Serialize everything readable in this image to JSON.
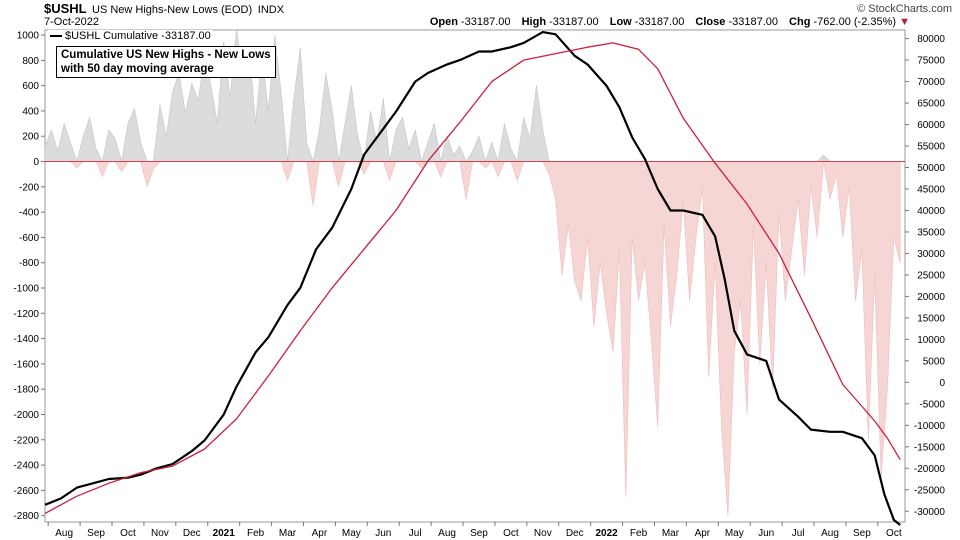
{
  "header": {
    "symbol": "$USHL",
    "description": "US New Highs-New Lows (EOD)",
    "exchange": "INDX",
    "date": "7-Oct-2022",
    "brand": "© StockCharts.com",
    "open_label": "Open",
    "open": "-33187.00",
    "high_label": "High",
    "high": "-33187.00",
    "low_label": "Low",
    "low": "-33187.00",
    "close_label": "Close",
    "close": "-33187.00",
    "chg_label": "Chg",
    "chg": "-762.00 (-2.35%)",
    "chg_arrow": "▼"
  },
  "legend": {
    "label": "$USHL Cumulative -33187.00"
  },
  "annotation": {
    "line1": "Cumulative US New Highs - New Lows",
    "line2": "with 50 day moving average"
  },
  "chart_data": {
    "type": "line",
    "left_axis": {
      "ticks": [
        1000,
        800,
        600,
        400,
        200,
        0,
        -200,
        -400,
        -600,
        -800,
        -1000,
        -1200,
        -1400,
        -1600,
        -1800,
        -2000,
        -2200,
        -2400,
        -2600,
        -2800
      ],
      "range": [
        -2850,
        1040
      ]
    },
    "right_axis": {
      "ticks": [
        80000,
        75000,
        70000,
        65000,
        60000,
        55000,
        50000,
        45000,
        40000,
        35000,
        30000,
        25000,
        20000,
        15000,
        10000,
        5000,
        0,
        -5000,
        -10000,
        -15000,
        -20000,
        -25000,
        -30000
      ],
      "range": [
        -32500,
        82000
      ]
    },
    "x_labels": [
      {
        "t": 0.6,
        "label": "Aug"
      },
      {
        "t": 1.6,
        "label": "Sep"
      },
      {
        "t": 2.6,
        "label": "Oct"
      },
      {
        "t": 3.6,
        "label": "Nov"
      },
      {
        "t": 4.6,
        "label": "Dec"
      },
      {
        "t": 5.6,
        "label": "2021",
        "bold": true
      },
      {
        "t": 6.6,
        "label": "Feb"
      },
      {
        "t": 7.6,
        "label": "Mar"
      },
      {
        "t": 8.6,
        "label": "Apr"
      },
      {
        "t": 9.6,
        "label": "May"
      },
      {
        "t": 10.6,
        "label": "Jun"
      },
      {
        "t": 11.6,
        "label": "Jul"
      },
      {
        "t": 12.6,
        "label": "Aug"
      },
      {
        "t": 13.6,
        "label": "Sep"
      },
      {
        "t": 14.6,
        "label": "Oct"
      },
      {
        "t": 15.6,
        "label": "Nov"
      },
      {
        "t": 16.6,
        "label": "Dec"
      },
      {
        "t": 17.6,
        "label": "2022",
        "bold": true
      },
      {
        "t": 18.6,
        "label": "Feb"
      },
      {
        "t": 19.6,
        "label": "Mar"
      },
      {
        "t": 20.6,
        "label": "Apr"
      },
      {
        "t": 21.6,
        "label": "May"
      },
      {
        "t": 22.6,
        "label": "Jun"
      },
      {
        "t": 23.6,
        "label": "Jul"
      },
      {
        "t": 24.6,
        "label": "Aug"
      },
      {
        "t": 25.6,
        "label": "Sep"
      },
      {
        "t": 26.6,
        "label": "Oct"
      }
    ],
    "series": [
      {
        "name": "$USHL Cumulative",
        "axis": "right",
        "color": "#000000",
        "points": [
          [
            0,
            -28500
          ],
          [
            0.5,
            -27000
          ],
          [
            1,
            -24500
          ],
          [
            1.5,
            -23500
          ],
          [
            2,
            -22500
          ],
          [
            2.6,
            -22200
          ],
          [
            3,
            -21500
          ],
          [
            3.5,
            -20000
          ],
          [
            4,
            -19000
          ],
          [
            4.6,
            -16000
          ],
          [
            5,
            -13500
          ],
          [
            5.6,
            -7500
          ],
          [
            6,
            -1000
          ],
          [
            6.6,
            7000
          ],
          [
            7,
            10500
          ],
          [
            7.6,
            18000
          ],
          [
            8,
            22000
          ],
          [
            8.5,
            31000
          ],
          [
            9,
            36000
          ],
          [
            9.6,
            45000
          ],
          [
            10,
            53000
          ],
          [
            10.6,
            59000
          ],
          [
            11,
            63000
          ],
          [
            11.6,
            70000
          ],
          [
            12,
            72000
          ],
          [
            12.6,
            74000
          ],
          [
            13,
            75000
          ],
          [
            13.6,
            77000
          ],
          [
            14,
            77000
          ],
          [
            14.6,
            78000
          ],
          [
            15,
            79000
          ],
          [
            15.6,
            81500
          ],
          [
            16,
            81000
          ],
          [
            16.6,
            76000
          ],
          [
            17,
            74000
          ],
          [
            17.6,
            69000
          ],
          [
            18,
            64000
          ],
          [
            18.4,
            57000
          ],
          [
            18.8,
            52000
          ],
          [
            19.2,
            45000
          ],
          [
            19.6,
            40000
          ],
          [
            20,
            40000
          ],
          [
            20.6,
            39000
          ],
          [
            21,
            34000
          ],
          [
            21.3,
            24000
          ],
          [
            21.6,
            12000
          ],
          [
            22,
            6500
          ],
          [
            22.6,
            5000
          ],
          [
            23,
            -4000
          ],
          [
            23.6,
            -8000
          ],
          [
            24,
            -11000
          ],
          [
            24.6,
            -11500
          ],
          [
            25,
            -11500
          ],
          [
            25.6,
            -13000
          ],
          [
            26,
            -17000
          ],
          [
            26.3,
            -26000
          ],
          [
            26.6,
            -32000
          ],
          [
            26.8,
            -33187
          ]
        ]
      },
      {
        "name": "50 day moving average",
        "axis": "right",
        "color": "#cc1f3c",
        "points": [
          [
            0,
            -30500
          ],
          [
            1,
            -26500
          ],
          [
            2,
            -23500
          ],
          [
            3,
            -21000
          ],
          [
            4,
            -19500
          ],
          [
            5,
            -15500
          ],
          [
            6,
            -8500
          ],
          [
            7,
            1500
          ],
          [
            8,
            12000
          ],
          [
            9,
            22000
          ],
          [
            10,
            31000
          ],
          [
            11,
            40000
          ],
          [
            12,
            51500
          ],
          [
            13,
            60500
          ],
          [
            14,
            70000
          ],
          [
            15,
            75000
          ],
          [
            16,
            76500
          ],
          [
            17,
            78000
          ],
          [
            17.8,
            79000
          ],
          [
            18.6,
            77500
          ],
          [
            19.2,
            73000
          ],
          [
            20,
            61500
          ],
          [
            21,
            51000
          ],
          [
            22,
            41500
          ],
          [
            23,
            30000
          ],
          [
            24,
            15000
          ],
          [
            25,
            -500
          ],
          [
            26,
            -9000
          ],
          [
            26.4,
            -13000
          ],
          [
            26.8,
            -18000
          ]
        ]
      },
      {
        "name": "New Highs - New Lows",
        "axis": "left",
        "type": "area",
        "positive_color": "#dcdcdc",
        "negative_color": "#f6d5d5",
        "points": [
          [
            0,
            120
          ],
          [
            0.2,
            250
          ],
          [
            0.4,
            80
          ],
          [
            0.6,
            300
          ],
          [
            0.8,
            150
          ],
          [
            1,
            -50
          ],
          [
            1.2,
            200
          ],
          [
            1.4,
            350
          ],
          [
            1.6,
            100
          ],
          [
            1.8,
            -120
          ],
          [
            2,
            250
          ],
          [
            2.2,
            180
          ],
          [
            2.4,
            -80
          ],
          [
            2.6,
            300
          ],
          [
            2.8,
            420
          ],
          [
            3,
            150
          ],
          [
            3.2,
            -200
          ],
          [
            3.4,
            -60
          ],
          [
            3.6,
            450
          ],
          [
            3.8,
            200
          ],
          [
            4,
            550
          ],
          [
            4.2,
            700
          ],
          [
            4.4,
            380
          ],
          [
            4.6,
            620
          ],
          [
            4.8,
            480
          ],
          [
            5,
            850
          ],
          [
            5.2,
            600
          ],
          [
            5.4,
            300
          ],
          [
            5.6,
            950
          ],
          [
            5.8,
            500
          ],
          [
            6,
            1050
          ],
          [
            6.2,
            700
          ],
          [
            6.4,
            900
          ],
          [
            6.6,
            300
          ],
          [
            6.8,
            850
          ],
          [
            7,
            400
          ],
          [
            7.2,
            1000
          ],
          [
            7.4,
            550
          ],
          [
            7.6,
            -150
          ],
          [
            7.8,
            500
          ],
          [
            8,
            900
          ],
          [
            8.2,
            150
          ],
          [
            8.4,
            -350
          ],
          [
            8.6,
            250
          ],
          [
            8.8,
            700
          ],
          [
            9,
            400
          ],
          [
            9.2,
            -200
          ],
          [
            9.4,
            300
          ],
          [
            9.6,
            600
          ],
          [
            9.8,
            200
          ],
          [
            10,
            -100
          ],
          [
            10.2,
            400
          ],
          [
            10.4,
            150
          ],
          [
            10.6,
            500
          ],
          [
            10.8,
            -150
          ],
          [
            11,
            250
          ],
          [
            11.2,
            350
          ],
          [
            11.4,
            100
          ],
          [
            11.6,
            250
          ],
          [
            11.8,
            -50
          ],
          [
            12,
            150
          ],
          [
            12.2,
            300
          ],
          [
            12.4,
            -120
          ],
          [
            12.6,
            200
          ],
          [
            12.8,
            50
          ],
          [
            13,
            120
          ],
          [
            13.2,
            -300
          ],
          [
            13.4,
            80
          ],
          [
            13.6,
            200
          ],
          [
            13.8,
            -50
          ],
          [
            14,
            150
          ],
          [
            14.2,
            -120
          ],
          [
            14.4,
            300
          ],
          [
            14.6,
            100
          ],
          [
            14.8,
            -150
          ],
          [
            15,
            350
          ],
          [
            15.2,
            180
          ],
          [
            15.4,
            600
          ],
          [
            15.6,
            250
          ],
          [
            15.8,
            -100
          ],
          [
            16,
            -300
          ],
          [
            16.2,
            -900
          ],
          [
            16.4,
            -500
          ],
          [
            16.6,
            -950
          ],
          [
            16.8,
            -1100
          ],
          [
            17,
            -600
          ],
          [
            17.2,
            -1300
          ],
          [
            17.4,
            -800
          ],
          [
            17.6,
            -1200
          ],
          [
            17.8,
            -1500
          ],
          [
            18,
            -700
          ],
          [
            18.2,
            -2650
          ],
          [
            18.4,
            -600
          ],
          [
            18.6,
            -1100
          ],
          [
            18.8,
            -800
          ],
          [
            19,
            -1400
          ],
          [
            19.2,
            -2100
          ],
          [
            19.4,
            -500
          ],
          [
            19.6,
            -1300
          ],
          [
            19.8,
            -900
          ],
          [
            20,
            -300
          ],
          [
            20.2,
            -1100
          ],
          [
            20.4,
            -600
          ],
          [
            20.6,
            -200
          ],
          [
            20.8,
            -1700
          ],
          [
            21,
            -800
          ],
          [
            21.2,
            -2100
          ],
          [
            21.4,
            -2800
          ],
          [
            21.6,
            -1500
          ],
          [
            21.8,
            -1100
          ],
          [
            22,
            -2000
          ],
          [
            22.2,
            -500
          ],
          [
            22.4,
            -1600
          ],
          [
            22.6,
            -800
          ],
          [
            22.8,
            -1800
          ],
          [
            23,
            -400
          ],
          [
            23.2,
            -1100
          ],
          [
            23.4,
            -700
          ],
          [
            23.6,
            -300
          ],
          [
            23.8,
            -900
          ],
          [
            24,
            -200
          ],
          [
            24.2,
            -600
          ],
          [
            24.4,
            50
          ],
          [
            24.6,
            -300
          ],
          [
            24.8,
            -100
          ],
          [
            25,
            -600
          ],
          [
            25.2,
            -200
          ],
          [
            25.4,
            -1100
          ],
          [
            25.6,
            -700
          ],
          [
            25.8,
            -2200
          ],
          [
            26,
            -900
          ],
          [
            26.2,
            -2500
          ],
          [
            26.4,
            -1800
          ],
          [
            26.6,
            -600
          ],
          [
            26.8,
            -800
          ]
        ]
      }
    ]
  }
}
